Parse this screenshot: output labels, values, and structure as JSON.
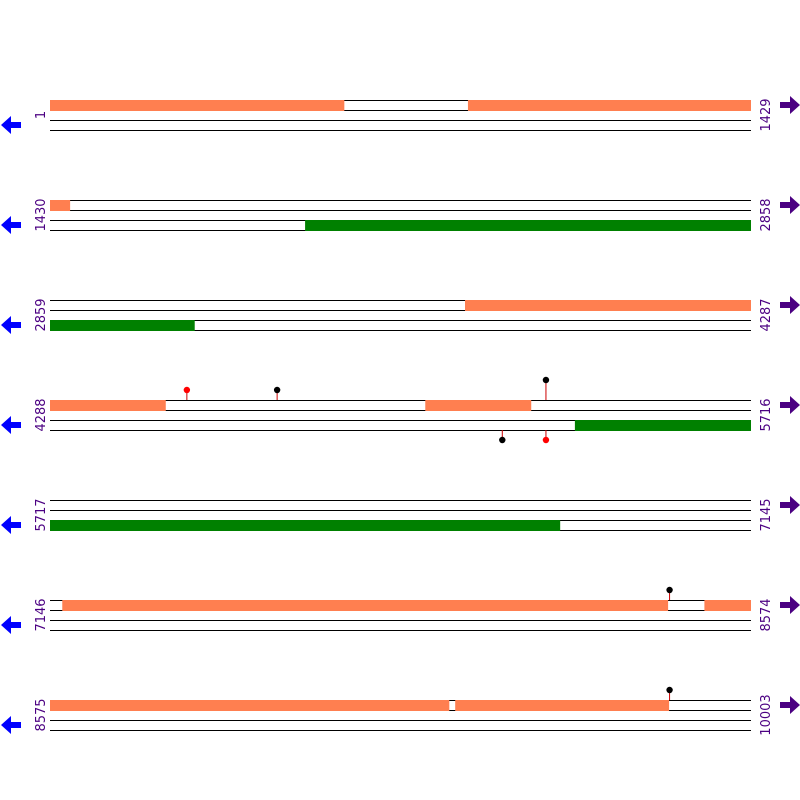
{
  "colors": {
    "forward_track": "#ff7f50",
    "reverse_track": "#008000",
    "strand_line": "#000000",
    "position_label": "#4b0082",
    "left_arrow": "#0000ff",
    "right_arrow": "#4b0082",
    "marker_red": "#ff0000",
    "marker_black": "#000000",
    "stem": "#cc0000"
  },
  "icons": {
    "left": "arrow-left-icon",
    "right": "arrow-right-icon"
  },
  "rows": [
    {
      "start": "1",
      "end": "1429",
      "start_num": 1,
      "end_num": 1429,
      "forward": [
        [
          1,
          600
        ],
        [
          853,
          1429
        ]
      ],
      "reverse": [],
      "markers": []
    },
    {
      "start": "1430",
      "end": "2858",
      "start_num": 1430,
      "end_num": 2858,
      "forward": [
        [
          1430,
          1470
        ]
      ],
      "reverse": [
        [
          1950,
          2858
        ]
      ],
      "markers": []
    },
    {
      "start": "2859",
      "end": "4287",
      "start_num": 2859,
      "end_num": 4287,
      "forward": [
        [
          3705,
          4287
        ]
      ],
      "reverse": [
        [
          2859,
          3153
        ]
      ],
      "markers": []
    },
    {
      "start": "4288",
      "end": "5716",
      "start_num": 4288,
      "end_num": 5716,
      "forward": [
        [
          4288,
          4523
        ],
        [
          5053,
          5268
        ]
      ],
      "reverse": [
        [
          5358,
          5716
        ]
      ],
      "markers": [
        {
          "pos": 4567,
          "strand": "forward",
          "color": "red",
          "tall": false
        },
        {
          "pos": 4751,
          "strand": "forward",
          "color": "black",
          "tall": false
        },
        {
          "pos": 5299,
          "strand": "forward",
          "color": "black",
          "tall": true
        },
        {
          "pos": 5210,
          "strand": "reverse",
          "color": "black",
          "tall": false
        },
        {
          "pos": 5299,
          "strand": "reverse",
          "color": "red",
          "tall": false
        }
      ]
    },
    {
      "start": "5717",
      "end": "7145",
      "start_num": 5717,
      "end_num": 7145,
      "forward": [],
      "reverse": [
        [
          5717,
          6756
        ]
      ],
      "markers": []
    },
    {
      "start": "7146",
      "end": "8574",
      "start_num": 7146,
      "end_num": 8574,
      "forward": [
        [
          7171,
          8405
        ],
        [
          8480,
          8574
        ]
      ],
      "reverse": [],
      "markers": [
        {
          "pos": 8409,
          "strand": "forward",
          "color": "black",
          "tall": false
        }
      ]
    },
    {
      "start": "8575",
      "end": "10003",
      "start_num": 8575,
      "end_num": 10003,
      "forward": [
        [
          8575,
          9388
        ],
        [
          9401,
          9836
        ]
      ],
      "reverse": [],
      "markers": [
        {
          "pos": 9838,
          "strand": "forward",
          "color": "black",
          "tall": false
        }
      ]
    }
  ]
}
